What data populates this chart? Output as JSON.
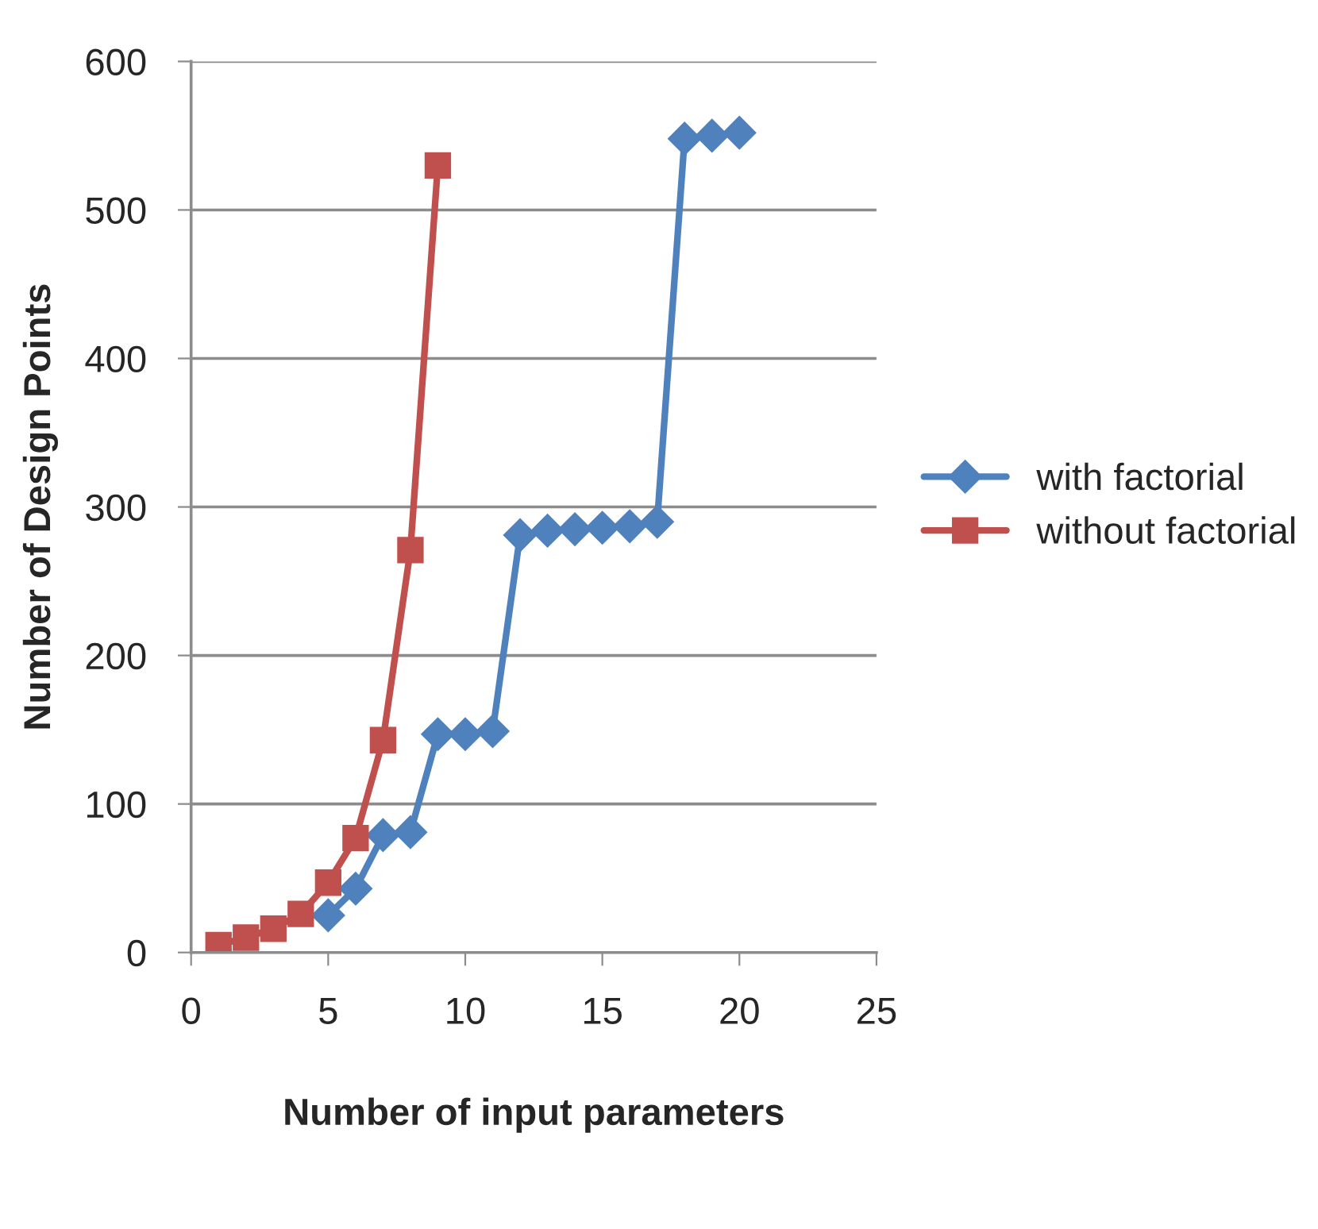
{
  "chart_data": {
    "type": "line",
    "xlabel": "Number of input parameters",
    "ylabel": "Number of Design Points",
    "xlim": [
      0,
      25
    ],
    "xticks": [
      0,
      5,
      10,
      15,
      20,
      25
    ],
    "ylim": [
      0,
      600
    ],
    "yticks": [
      0,
      100,
      200,
      300,
      400,
      500,
      600
    ],
    "grid": "y",
    "legend": "right",
    "line_style": "solid",
    "series": [
      {
        "name": "with factorial",
        "color": "#4f81bd",
        "marker": "diamond",
        "x": [
          5,
          6,
          7,
          8,
          9,
          10,
          11,
          12,
          13,
          14,
          15,
          16,
          17,
          18,
          19,
          20
        ],
        "values": [
          25,
          43,
          79,
          81,
          147,
          147,
          149,
          281,
          284,
          285,
          286,
          287,
          290,
          548,
          550,
          552
        ]
      },
      {
        "name": "without factorial",
        "color": "#c0504d",
        "marker": "square",
        "x": [
          1,
          2,
          3,
          4,
          5,
          6,
          7,
          8,
          9
        ],
        "values": [
          5,
          10,
          16,
          26,
          47,
          77,
          143,
          271,
          530
        ]
      }
    ]
  }
}
